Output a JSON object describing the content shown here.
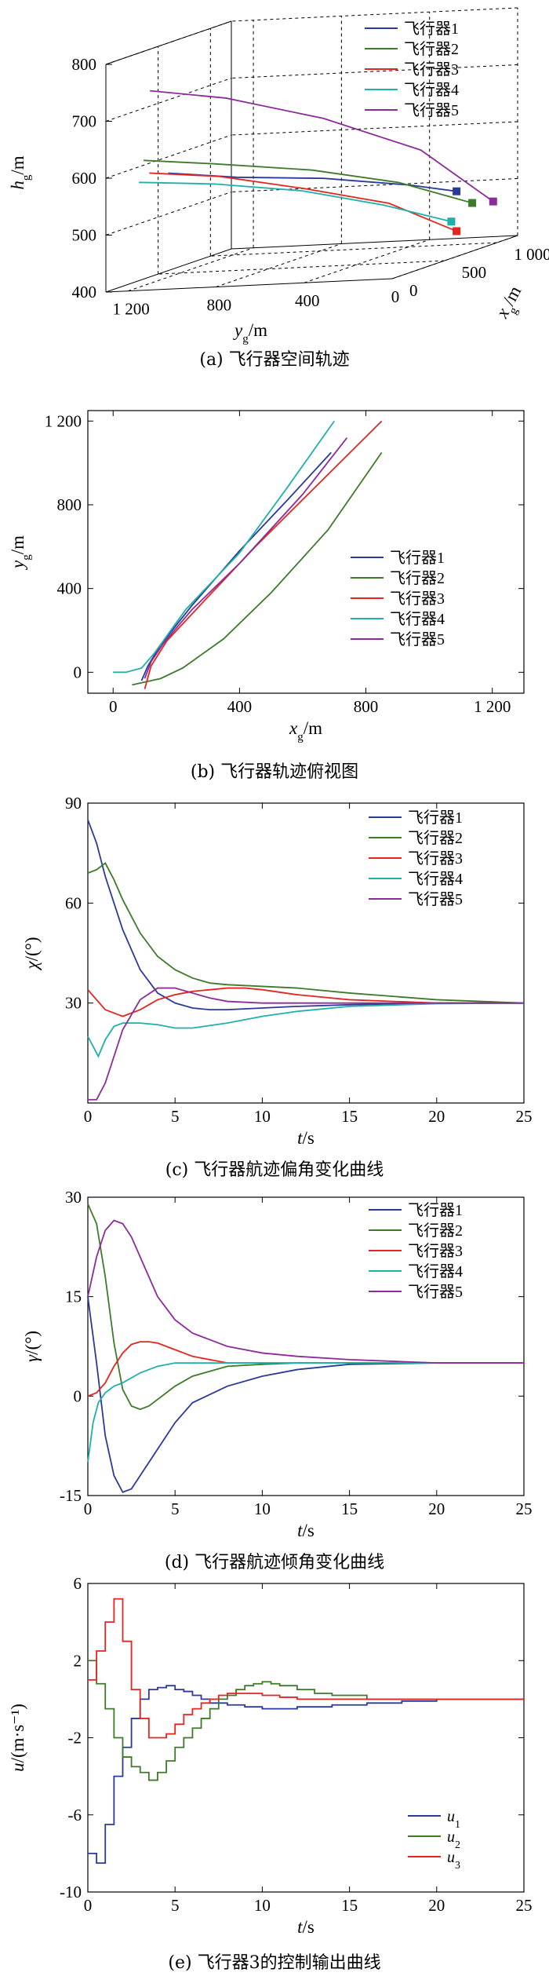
{
  "colors": {
    "s1": "#2b3a9a",
    "s2": "#3d7a2a",
    "s3": "#e3261f",
    "s4": "#1fb0a8",
    "s5": "#8b2c9a"
  },
  "panels": [
    {
      "caption": "(a) 飞行器空间轨迹",
      "chart_data": {
        "type": "line",
        "xlabel_base": "x",
        "xlabel_sub": "g",
        "xlabel_unit": "/m",
        "ylabel_base": "y",
        "ylabel_sub": "g",
        "ylabel_unit": "/m",
        "zlabel_base": "h",
        "zlabel_sub": "g",
        "zlabel_unit": "/m",
        "xticks": [
          "0",
          "500",
          "1 000"
        ],
        "yticks": [
          "1 200",
          "800",
          "400",
          "0"
        ],
        "zticks": [
          "400",
          "500",
          "600",
          "700",
          "800"
        ],
        "xlim": [
          0,
          1200
        ],
        "ylim": [
          0,
          1300
        ],
        "zlim": [
          400,
          800
        ],
        "series": [
          {
            "name": "飞行器1",
            "x": [
              70,
              200,
              400,
              600,
              700
            ],
            "y": [
              1050,
              800,
              500,
              200,
              40
            ],
            "z": [
              600,
              580,
              560,
              530,
              510
            ]
          },
          {
            "name": "飞行器2",
            "x": [
              150,
              300,
              500,
              700,
              850
            ],
            "y": [
              1200,
              950,
              600,
              300,
              40
            ],
            "z": [
              620,
              600,
              570,
              530,
              480
            ]
          },
          {
            "name": "飞行器3",
            "x": [
              100,
              250,
              450,
              600,
              700
            ],
            "y": [
              1150,
              900,
              600,
              300,
              40
            ],
            "z": [
              600,
              580,
              540,
              500,
              440
            ]
          },
          {
            "name": "飞行器4",
            "x": [
              0,
              200,
              400,
              550,
              650
            ],
            "y": [
              1150,
              900,
              600,
              300,
              40
            ],
            "z": [
              590,
              570,
              540,
              500,
              460
            ]
          },
          {
            "name": "飞行器5",
            "x": [
              0,
              200,
              500,
              800,
              1050
            ],
            "y": [
              1100,
              850,
              550,
              250,
              40
            ],
            "z": [
              750,
              720,
              660,
              580,
              470
            ]
          }
        ]
      }
    },
    {
      "caption": "(b) 飞行器轨迹俯视图",
      "chart_data": {
        "type": "line",
        "xlabel_base": "x",
        "xlabel_sub": "g",
        "xlabel_unit": "/m",
        "ylabel_base": "y",
        "ylabel_sub": "g",
        "ylabel_unit": "/m",
        "xlim": [
          -80,
          1300
        ],
        "ylim": [
          -100,
          1250
        ],
        "xticks": [
          0,
          400,
          800,
          1200
        ],
        "xtick_labels": [
          "0",
          "400",
          "800",
          "1 200"
        ],
        "yticks": [
          0,
          400,
          800,
          1200
        ],
        "ytick_labels": [
          "0",
          "400",
          "800",
          "1 200"
        ],
        "series": [
          {
            "name": "飞行器1",
            "x": [
              90,
              110,
              150,
              250,
              400,
              550,
              690
            ],
            "y": [
              -40,
              30,
              130,
              320,
              580,
              820,
              1050
            ]
          },
          {
            "name": "飞行器2",
            "x": [
              60,
              150,
              220,
              350,
              500,
              680,
              850
            ],
            "y": [
              -60,
              -30,
              20,
              160,
              380,
              680,
              1050
            ]
          },
          {
            "name": "飞行器3",
            "x": [
              100,
              120,
              170,
              300,
              450,
              650,
              850
            ],
            "y": [
              -80,
              30,
              150,
              360,
              600,
              900,
              1200
            ]
          },
          {
            "name": "飞行器4",
            "x": [
              0,
              40,
              90,
              130,
              230,
              400,
              550,
              700
            ],
            "y": [
              0,
              0,
              20,
              90,
              300,
              570,
              880,
              1200
            ]
          },
          {
            "name": "飞行器5",
            "x": [
              100,
              120,
              160,
              250,
              400,
              600,
              740
            ],
            "y": [
              -30,
              50,
              140,
              300,
              520,
              850,
              1120
            ]
          }
        ]
      }
    },
    {
      "caption": "(c) 飞行器航迹偏角变化曲线",
      "chart_data": {
        "type": "line",
        "xlabel_base": "t",
        "xlabel_unit": "/s",
        "ylabel_base": "χ",
        "ylabel_unit": "/(°)",
        "xlim": [
          0,
          25
        ],
        "ylim": [
          0,
          90
        ],
        "xticks": [
          0,
          5,
          10,
          15,
          20,
          25
        ],
        "yticks": [
          30,
          60,
          90
        ],
        "series": [
          {
            "name": "飞行器1",
            "x": [
              0,
              0.5,
              1,
              2,
              3,
              4,
              5,
              6,
              7,
              8,
              10,
              12,
              15,
              20,
              25
            ],
            "y": [
              85,
              78,
              68,
              52,
              40,
              33,
              30,
              28.5,
              28,
              28,
              28.5,
              29,
              29.5,
              30,
              30
            ]
          },
          {
            "name": "飞行器2",
            "x": [
              0,
              0.5,
              1,
              1.5,
              2,
              3,
              4,
              5,
              6,
              7,
              8,
              10,
              12,
              15,
              20,
              25
            ],
            "y": [
              69,
              70,
              72,
              67,
              61,
              51,
              44,
              40,
              37.5,
              36,
              35.5,
              35,
              34.5,
              33,
              31,
              30
            ]
          },
          {
            "name": "飞行器3",
            "x": [
              0,
              0.5,
              1,
              2,
              3,
              4,
              5,
              6,
              7,
              8,
              9,
              10,
              12,
              15,
              20,
              25
            ],
            "y": [
              34,
              31,
              28,
              26,
              28,
              31,
              32.5,
              33.5,
              34,
              34.5,
              34.5,
              34,
              32.5,
              31,
              30,
              30
            ]
          },
          {
            "name": "飞行器4",
            "x": [
              0,
              0.3,
              0.6,
              1,
              1.5,
              2,
              3,
              4,
              5,
              6,
              8,
              10,
              12,
              15,
              20,
              25
            ],
            "y": [
              20,
              17,
              14,
              19,
              23,
              24,
              24,
              23.5,
              22.5,
              22.5,
              24,
              26,
              27.5,
              29,
              29.8,
              30
            ]
          },
          {
            "name": "飞行器5",
            "x": [
              0,
              0.5,
              1,
              2,
              3,
              4,
              5,
              6,
              7,
              8,
              10,
              12,
              15,
              20,
              25
            ],
            "y": [
              1,
              1,
              6,
              22,
              31,
              34.5,
              34.5,
              33,
              31.5,
              30.5,
              30,
              30,
              30,
              30,
              30
            ]
          }
        ]
      }
    },
    {
      "caption": "(d) 飞行器航迹倾角变化曲线",
      "chart_data": {
        "type": "line",
        "xlabel_base": "t",
        "xlabel_unit": "/s",
        "ylabel_base": "γ",
        "ylabel_unit": "/(°)",
        "xlim": [
          0,
          25
        ],
        "ylim": [
          -15,
          30
        ],
        "xticks": [
          0,
          5,
          10,
          15,
          20,
          25
        ],
        "yticks": [
          -15,
          0,
          15,
          30
        ],
        "series": [
          {
            "name": "飞行器1",
            "x": [
              0,
              0.5,
              1,
              1.5,
              2,
              2.5,
              3,
              4,
              5,
              6,
              8,
              10,
              12,
              15,
              20,
              25
            ],
            "y": [
              15,
              5,
              -6,
              -12,
              -14.5,
              -14,
              -12,
              -8,
              -4,
              -1,
              1.5,
              3,
              4,
              4.8,
              5,
              5
            ]
          },
          {
            "name": "飞行器2",
            "x": [
              0,
              0.5,
              1,
              1.5,
              2,
              2.5,
              3,
              3.5,
              4,
              5,
              6,
              8,
              10,
              12,
              15,
              20,
              25
            ],
            "y": [
              29,
              26,
              18,
              8,
              1,
              -1.5,
              -2,
              -1.5,
              -0.5,
              1.5,
              3,
              4.5,
              4.8,
              5,
              5,
              5,
              5
            ]
          },
          {
            "name": "飞行器3",
            "x": [
              0,
              0.5,
              1,
              1.5,
              2,
              2.5,
              3,
              3.5,
              4,
              5,
              6,
              8,
              10,
              15,
              20,
              25
            ],
            "y": [
              0,
              0.5,
              2,
              4.5,
              6.5,
              7.8,
              8.2,
              8.2,
              8,
              7,
              6,
              5,
              5,
              5,
              5,
              5
            ]
          },
          {
            "name": "飞行器4",
            "x": [
              0,
              0.3,
              0.6,
              1,
              1.5,
              2,
              3,
              4,
              5,
              6,
              8,
              10,
              15,
              20,
              25
            ],
            "y": [
              -10,
              -4,
              -1,
              0.5,
              1.5,
              2,
              3.5,
              4.5,
              5,
              5,
              5,
              5,
              5,
              5,
              5
            ]
          },
          {
            "name": "飞行器5",
            "x": [
              0,
              0.5,
              1,
              1.5,
              2,
              2.5,
              3,
              3.5,
              4,
              5,
              6,
              7,
              8,
              10,
              12,
              15,
              20,
              25
            ],
            "y": [
              15,
              21,
              25,
              26.5,
              26,
              24,
              21,
              18,
              15,
              11.5,
              9.5,
              8.5,
              7.5,
              6.5,
              6,
              5.5,
              5,
              5
            ]
          }
        ]
      }
    },
    {
      "caption": "(e) 飞行器3的控制输出曲线",
      "chart_data": {
        "type": "line",
        "step": true,
        "xlabel_base": "t",
        "xlabel_unit": "/s",
        "ylabel_base": "u",
        "ylabel_unit": "/(m·s⁻¹)",
        "xlim": [
          0,
          25
        ],
        "ylim": [
          -10,
          6
        ],
        "xticks": [
          0,
          5,
          10,
          15,
          20,
          25
        ],
        "yticks": [
          -10,
          -6,
          -2,
          2,
          6
        ],
        "series": [
          {
            "name": "u1",
            "label_base": "u",
            "label_sub": "1",
            "x": [
              0,
              0.5,
              1,
              1.5,
              2,
              2.5,
              3,
              3.5,
              4,
              4.5,
              5,
              5.5,
              6,
              6.5,
              7,
              8,
              9,
              10,
              11,
              12,
              14,
              16,
              18,
              20,
              25
            ],
            "y": [
              -8,
              -8.5,
              -6.5,
              -4,
              -2.5,
              -1,
              0,
              0.5,
              0.6,
              0.7,
              0.5,
              0.4,
              0.2,
              0,
              -0.2,
              -0.3,
              -0.4,
              -0.5,
              -0.5,
              -0.4,
              -0.3,
              -0.2,
              -0.1,
              0,
              0
            ]
          },
          {
            "name": "u2",
            "label_base": "u",
            "label_sub": "2",
            "x": [
              0,
              0.5,
              1,
              1.5,
              2,
              2.5,
              3,
              3.5,
              4,
              4.5,
              5,
              5.5,
              6,
              6.5,
              7,
              7.5,
              8,
              8.5,
              9,
              9.5,
              10,
              10.5,
              11,
              12,
              13,
              14,
              16,
              18,
              20,
              25
            ],
            "y": [
              2,
              0.8,
              -0.5,
              -2,
              -3,
              -3.5,
              -3.8,
              -4.2,
              -3.8,
              -3.2,
              -2.5,
              -2,
              -1.5,
              -1,
              -0.5,
              0,
              0.2,
              0.5,
              0.7,
              0.8,
              0.9,
              0.8,
              0.7,
              0.5,
              0.3,
              0.2,
              0,
              0,
              0,
              0
            ]
          },
          {
            "name": "u3",
            "label_base": "u",
            "label_sub": "3",
            "x": [
              0,
              0.5,
              1,
              1.5,
              2,
              2.5,
              3,
              3.5,
              4,
              4.5,
              5,
              5.5,
              6,
              6.5,
              7,
              7.5,
              8,
              9,
              10,
              11,
              12,
              14,
              16,
              18,
              20,
              25
            ],
            "y": [
              1,
              2.5,
              4,
              5.2,
              3,
              0.5,
              -1,
              -2,
              -2,
              -1.8,
              -1.3,
              -0.8,
              -0.5,
              -0.2,
              0,
              0.2,
              0.3,
              0.3,
              0.2,
              0.1,
              0,
              0,
              0,
              0,
              0,
              0
            ]
          }
        ]
      }
    }
  ]
}
